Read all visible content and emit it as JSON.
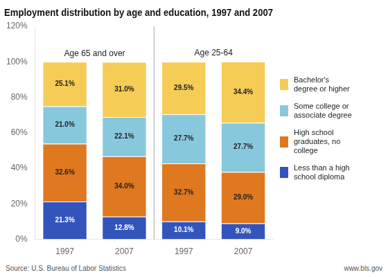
{
  "chart_data": {
    "type": "bar",
    "stacked": true,
    "title": "Employment distribution by age and education, 1997 and 2007",
    "categories": [
      "1997",
      "2007",
      "1997",
      "2007"
    ],
    "annotations": [
      "Age 65 and over",
      "Age 25-64"
    ],
    "footnotes": [
      "Source: U.S. Bureau of Labor Statistics",
      "www.bls.gov"
    ],
    "series": [
      {
        "name": "Less than a high\nschool diploma",
        "color": "#3355bb",
        "values": [
          21.3,
          12.8,
          10.1,
          9.0
        ],
        "value_labels": [
          "21.3%",
          "12.8%",
          "10.1%",
          "9.0%"
        ]
      },
      {
        "name": "High school\ngraduates, no\ncollege",
        "color": "#e07820",
        "values": [
          32.6,
          34.0,
          32.7,
          29.0
        ],
        "value_labels": [
          "32.6%",
          "34.0%",
          "32.7%",
          "29.0%"
        ]
      },
      {
        "name": "Some college or\nassociate degree",
        "color": "#88c8dd",
        "values": [
          21.0,
          22.1,
          27.7,
          27.7
        ],
        "value_labels": [
          "21.0%",
          "22.1%",
          "27.7%",
          "27.7%"
        ]
      },
      {
        "name": "Bachelor's\ndegree or higher",
        "color": "#f5cc55",
        "values": [
          25.1,
          31.0,
          29.5,
          34.4
        ],
        "value_labels": [
          "25.1%",
          "31.0%",
          "29.5%",
          "34.4%"
        ]
      }
    ],
    "ylim": [
      0,
      120
    ],
    "yticks": [
      {
        "value": 0,
        "label": "0%"
      },
      {
        "value": 20,
        "label": "20%"
      },
      {
        "value": 40,
        "label": "40%"
      },
      {
        "value": 60,
        "label": "60%"
      },
      {
        "value": 80,
        "label": "80%"
      },
      {
        "value": 100,
        "label": "100%"
      },
      {
        "value": 120,
        "label": "120%"
      }
    ],
    "grid": false,
    "legend": "right",
    "data_labels": true
  }
}
